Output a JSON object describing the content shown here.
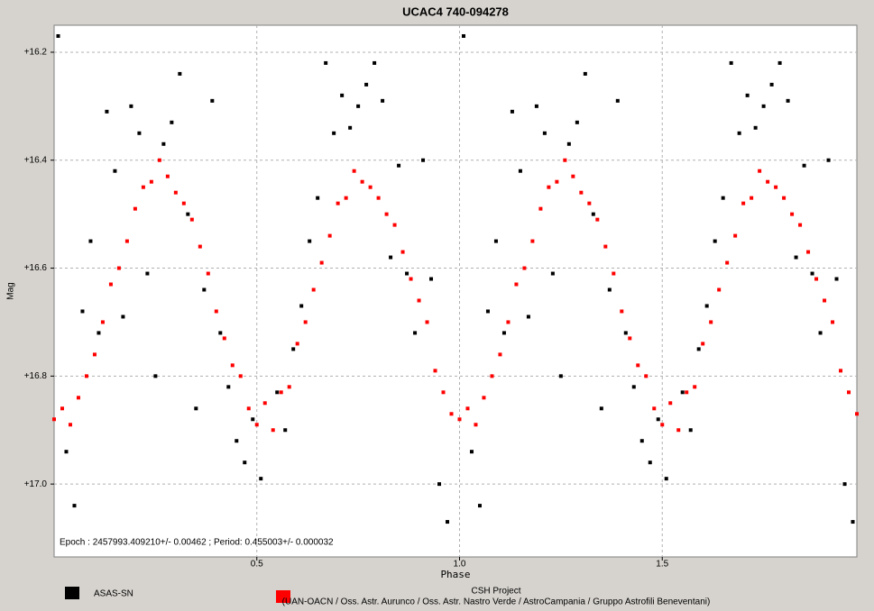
{
  "chart_data": {
    "type": "scatter",
    "title": "UCAC4 740-094278",
    "x_label": "Phase",
    "y_label": "Mag",
    "annotation": "Epoch : 2457993.409210+/- 0.00462 ; Period: 0.455003+/- 0.000032",
    "xlim": [
      0,
      1.98
    ],
    "ylim": [
      16.15,
      17.135
    ],
    "y_inverted": true,
    "grid": true,
    "xticks": [
      0.5,
      {
        "value": 1,
        "label": "1.0"
      },
      1.5
    ],
    "yticks": [
      {
        "value": 16.2,
        "label": "+16.2"
      },
      {
        "value": 16.4,
        "label": "+16.4"
      },
      {
        "value": 16.6,
        "label": "+16.6"
      },
      {
        "value": 16.8,
        "label": "+16.8"
      },
      {
        "value": 17.0,
        "label": "+17.0"
      }
    ],
    "series": [
      {
        "name": "ASAS-SN",
        "color": "#000000",
        "x": [
          0.01,
          0.03,
          0.05,
          0.07,
          0.09,
          0.11,
          0.13,
          0.15,
          0.17,
          0.19,
          0.21,
          0.23,
          0.25,
          0.27,
          0.29,
          0.31,
          0.33,
          0.35,
          0.37,
          0.39,
          0.41,
          0.43,
          0.45,
          0.47,
          0.49,
          0.51,
          0.55,
          0.57,
          0.59,
          0.61,
          0.63,
          0.65,
          0.67,
          0.69,
          0.71,
          0.73,
          0.75,
          0.77,
          0.79,
          0.81,
          0.83,
          0.85,
          0.87,
          0.89,
          0.91,
          0.93,
          0.95,
          0.97,
          1.01,
          1.03,
          1.05,
          1.07,
          1.09,
          1.11,
          1.13,
          1.15,
          1.17,
          1.19,
          1.21,
          1.23,
          1.25,
          1.27,
          1.29,
          1.31,
          1.33,
          1.35,
          1.37,
          1.39,
          1.41,
          1.43,
          1.45,
          1.47,
          1.49,
          1.51,
          1.55,
          1.57,
          1.59,
          1.61,
          1.63,
          1.65,
          1.67,
          1.69,
          1.71,
          1.73,
          1.75,
          1.77,
          1.79,
          1.81,
          1.83,
          1.85,
          1.87,
          1.89,
          1.91,
          1.93,
          1.95,
          1.97
        ],
        "values": [
          16.17,
          16.94,
          17.04,
          16.68,
          16.55,
          16.72,
          16.31,
          16.42,
          16.69,
          16.3,
          16.35,
          16.61,
          16.8,
          16.37,
          16.33,
          16.24,
          16.5,
          16.86,
          16.64,
          16.29,
          16.72,
          16.82,
          16.92,
          16.96,
          16.88,
          16.99,
          16.83,
          16.9,
          16.75,
          16.67,
          16.55,
          16.47,
          16.22,
          16.35,
          16.28,
          16.34,
          16.3,
          16.26,
          16.22,
          16.29,
          16.58,
          16.41,
          16.61,
          16.72,
          16.4,
          16.62,
          17.0,
          17.07,
          16.17,
          16.94,
          17.04,
          16.68,
          16.55,
          16.72,
          16.31,
          16.42,
          16.69,
          16.3,
          16.35,
          16.61,
          16.8,
          16.37,
          16.33,
          16.24,
          16.5,
          16.86,
          16.64,
          16.29,
          16.72,
          16.82,
          16.92,
          16.96,
          16.88,
          16.99,
          16.83,
          16.9,
          16.75,
          16.67,
          16.55,
          16.47,
          16.22,
          16.35,
          16.28,
          16.34,
          16.3,
          16.26,
          16.22,
          16.29,
          16.58,
          16.41,
          16.61,
          16.72,
          16.4,
          16.62,
          17.0,
          17.07
        ]
      },
      {
        "name": "CSH Project",
        "description": "(UAN-OACN / Oss. Astr. Aurunco / Oss. Astr. Nastro Verde / AstroCampania / Gruppo Astrofili Beneventani)",
        "color": "#ff0000",
        "x": [
          0.0,
          0.02,
          0.04,
          0.06,
          0.08,
          0.1,
          0.12,
          0.14,
          0.16,
          0.18,
          0.2,
          0.22,
          0.24,
          0.26,
          0.28,
          0.3,
          0.32,
          0.34,
          0.36,
          0.38,
          0.4,
          0.42,
          0.44,
          0.46,
          0.48,
          0.5,
          0.52,
          0.54,
          0.56,
          0.58,
          0.6,
          0.62,
          0.64,
          0.66,
          0.68,
          0.7,
          0.72,
          0.74,
          0.76,
          0.78,
          0.8,
          0.82,
          0.84,
          0.86,
          0.88,
          0.9,
          0.92,
          0.94,
          0.96,
          0.98,
          1.0,
          1.02,
          1.04,
          1.06,
          1.08,
          1.1,
          1.12,
          1.14,
          1.16,
          1.18,
          1.2,
          1.22,
          1.24,
          1.26,
          1.28,
          1.3,
          1.32,
          1.34,
          1.36,
          1.38,
          1.4,
          1.42,
          1.44,
          1.46,
          1.48,
          1.5,
          1.52,
          1.54,
          1.56,
          1.58,
          1.6,
          1.62,
          1.64,
          1.66,
          1.68,
          1.7,
          1.72,
          1.74,
          1.76,
          1.78,
          1.8,
          1.82,
          1.84,
          1.86,
          1.88,
          1.9,
          1.92,
          1.94,
          1.96,
          1.98
        ],
        "values": [
          16.88,
          16.86,
          16.89,
          16.84,
          16.8,
          16.76,
          16.7,
          16.63,
          16.6,
          16.55,
          16.49,
          16.45,
          16.44,
          16.4,
          16.43,
          16.46,
          16.48,
          16.51,
          16.56,
          16.61,
          16.68,
          16.73,
          16.78,
          16.8,
          16.86,
          16.89,
          16.85,
          16.9,
          16.83,
          16.82,
          16.74,
          16.7,
          16.64,
          16.59,
          16.54,
          16.48,
          16.47,
          16.42,
          16.44,
          16.45,
          16.47,
          16.5,
          16.52,
          16.57,
          16.62,
          16.66,
          16.7,
          16.79,
          16.83,
          16.87,
          16.88,
          16.86,
          16.89,
          16.84,
          16.8,
          16.76,
          16.7,
          16.63,
          16.6,
          16.55,
          16.49,
          16.45,
          16.44,
          16.4,
          16.43,
          16.46,
          16.48,
          16.51,
          16.56,
          16.61,
          16.68,
          16.73,
          16.78,
          16.8,
          16.86,
          16.89,
          16.85,
          16.9,
          16.83,
          16.82,
          16.74,
          16.7,
          16.64,
          16.59,
          16.54,
          16.48,
          16.47,
          16.42,
          16.44,
          16.45,
          16.47,
          16.5,
          16.52,
          16.57,
          16.62,
          16.66,
          16.7,
          16.79,
          16.83,
          16.87
        ]
      }
    ]
  }
}
